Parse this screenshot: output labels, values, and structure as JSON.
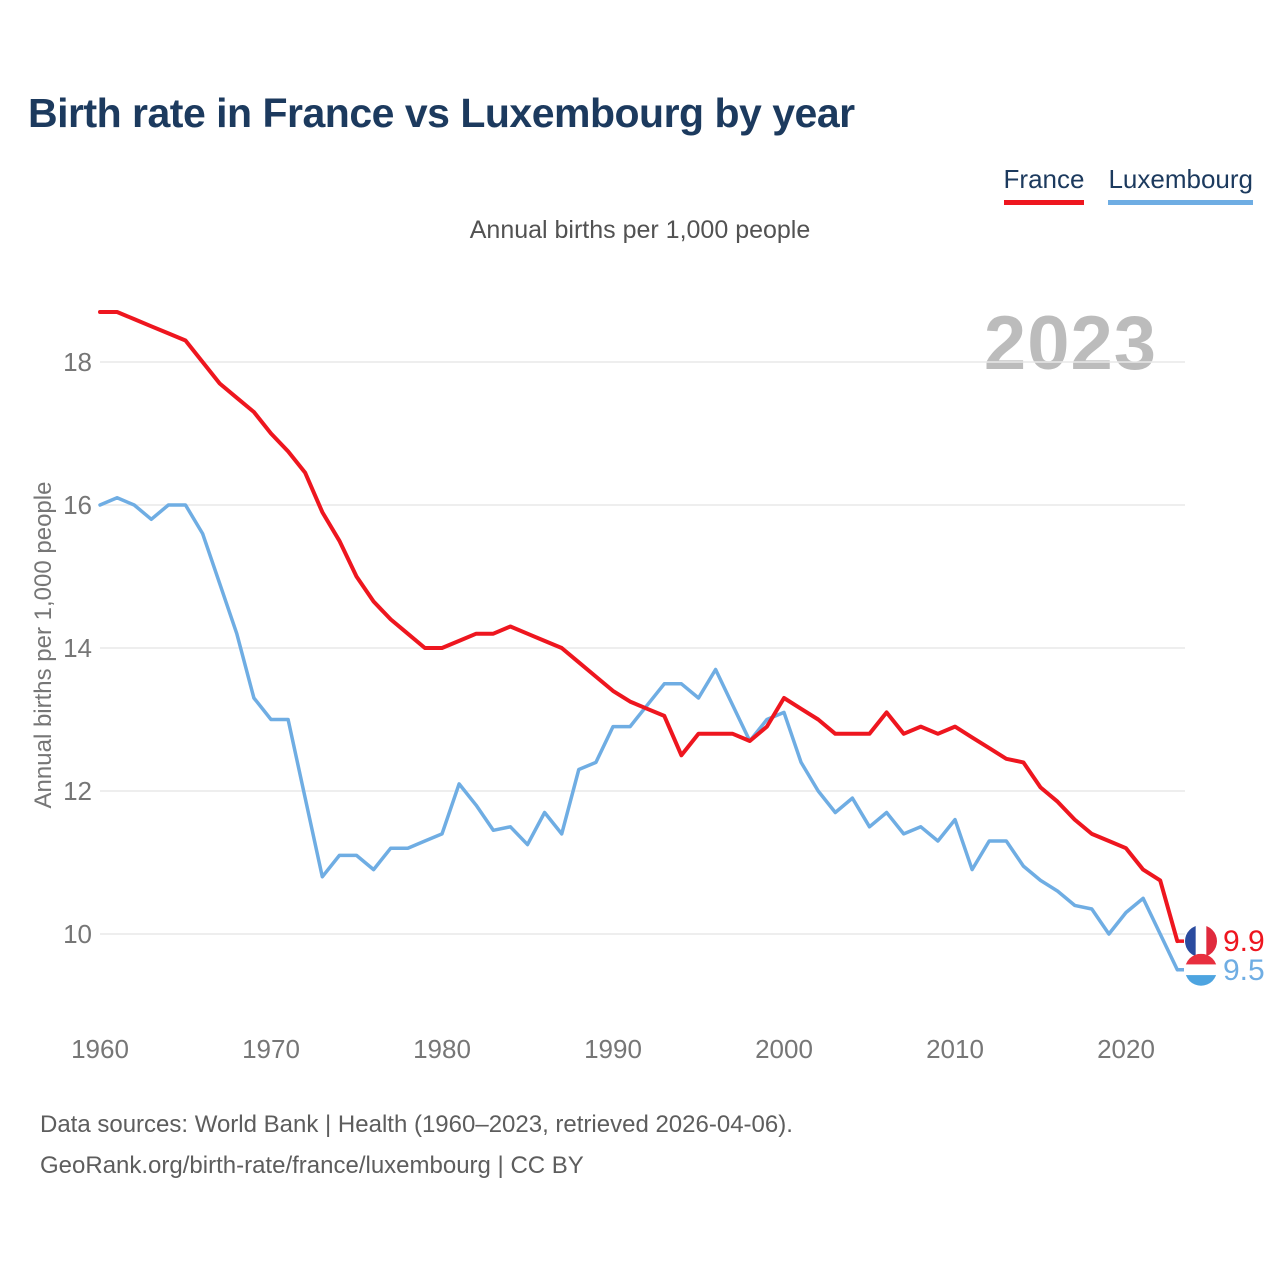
{
  "title": "Birth rate in France vs Luxembourg by year",
  "subtitle": "Annual births per 1,000 people",
  "watermark": "2023",
  "y_axis_title": "Annual births per 1,000 people",
  "legend": [
    {
      "label": "France",
      "color": "#ee161f"
    },
    {
      "label": "Luxembourg",
      "color": "#6fade3"
    }
  ],
  "colors": {
    "france": "#ee161f",
    "luxembourg": "#6fade3",
    "gridline": "#e8e8e8",
    "axis_text": "#767676",
    "title_text": "#1c3a5e",
    "watermark_text": "#bcbcbc"
  },
  "flags": {
    "france": {
      "orientation": "vertical",
      "stripes": [
        "#2a4b9f",
        "#ffffff",
        "#e02a3d"
      ]
    },
    "luxembourg": {
      "orientation": "horizontal",
      "stripes": [
        "#e82f3e",
        "#ffffff",
        "#4da4e0"
      ]
    }
  },
  "end_labels": [
    {
      "series": "France",
      "value": "9.9"
    },
    {
      "series": "Luxembourg",
      "value": "9.5"
    }
  ],
  "footer": {
    "line1": "Data sources: World Bank | Health (1960–2023, retrieved 2026-04-06).",
    "line2": "GeoRank.org/birth-rate/france/luxembourg | CC BY"
  },
  "chart_data": {
    "type": "line",
    "title": "Birth rate in France vs Luxembourg by year",
    "subtitle": "Annual births per 1,000 people",
    "xlabel": "",
    "ylabel": "Annual births per 1,000 people",
    "ylim": [
      9.2,
      19
    ],
    "yticks": [
      10,
      12,
      14,
      16,
      18
    ],
    "xticks": [
      1960,
      1970,
      1980,
      1990,
      2000,
      2010,
      2020
    ],
    "grid": true,
    "legend_position": "top-right",
    "x": [
      1960,
      1961,
      1962,
      1963,
      1964,
      1965,
      1966,
      1967,
      1968,
      1969,
      1970,
      1971,
      1972,
      1973,
      1974,
      1975,
      1976,
      1977,
      1978,
      1979,
      1980,
      1981,
      1982,
      1983,
      1984,
      1985,
      1986,
      1987,
      1988,
      1989,
      1990,
      1991,
      1992,
      1993,
      1994,
      1995,
      1996,
      1997,
      1998,
      1999,
      2000,
      2001,
      2002,
      2003,
      2004,
      2005,
      2006,
      2007,
      2008,
      2009,
      2010,
      2011,
      2012,
      2013,
      2014,
      2015,
      2016,
      2017,
      2018,
      2019,
      2020,
      2021,
      2022,
      2023
    ],
    "series": [
      {
        "name": "France",
        "color": "#ee161f",
        "end_label": "9.9",
        "values": [
          18.7,
          18.7,
          18.6,
          18.5,
          18.4,
          18.3,
          18.0,
          17.7,
          17.5,
          17.3,
          17.0,
          16.75,
          16.45,
          15.9,
          15.5,
          15.0,
          14.65,
          14.4,
          14.2,
          14.0,
          14.0,
          14.1,
          14.2,
          14.2,
          14.3,
          14.2,
          14.1,
          14.0,
          13.8,
          13.6,
          13.4,
          13.25,
          13.15,
          13.05,
          12.5,
          12.8,
          12.8,
          12.8,
          12.7,
          12.9,
          13.3,
          13.15,
          13.0,
          12.8,
          12.8,
          12.8,
          13.1,
          12.8,
          12.9,
          12.8,
          12.9,
          12.75,
          12.6,
          12.45,
          12.4,
          12.05,
          11.85,
          11.6,
          11.4,
          11.3,
          11.2,
          10.9,
          10.75,
          9.9
        ]
      },
      {
        "name": "Luxembourg",
        "color": "#6fade3",
        "end_label": "9.5",
        "values": [
          16.0,
          16.1,
          16.0,
          15.8,
          16.0,
          16.0,
          15.6,
          14.9,
          14.2,
          13.3,
          13.0,
          13.0,
          11.9,
          10.8,
          11.1,
          11.1,
          10.9,
          11.2,
          11.2,
          11.3,
          11.4,
          12.1,
          11.8,
          11.45,
          11.5,
          11.25,
          11.7,
          11.4,
          12.3,
          12.4,
          12.9,
          12.9,
          13.2,
          13.5,
          13.5,
          13.3,
          13.7,
          13.2,
          12.7,
          13.0,
          13.1,
          12.4,
          12.0,
          11.7,
          11.9,
          11.5,
          11.7,
          11.4,
          11.5,
          11.3,
          11.6,
          10.9,
          11.3,
          11.3,
          10.95,
          10.75,
          10.6,
          10.4,
          10.35,
          10.0,
          10.3,
          10.5,
          10.0,
          9.5
        ]
      }
    ]
  }
}
